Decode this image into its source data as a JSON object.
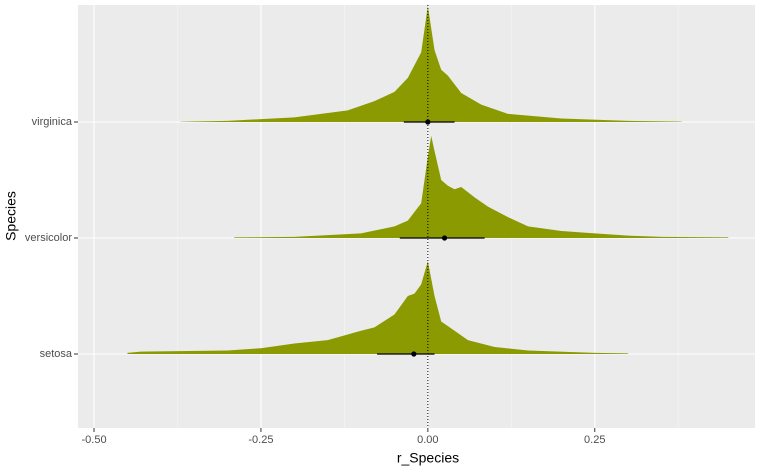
{
  "chart_data": {
    "type": "halfeye",
    "xlabel": "r_Species",
    "ylabel": "Species",
    "categories": [
      "setosa",
      "versicolor",
      "virginica"
    ],
    "color": "#8a9a00",
    "points": [
      -0.021,
      0.025,
      0.0
    ],
    "lower": [
      -0.076,
      -0.042,
      -0.036
    ],
    "upper": [
      0.01,
      0.085,
      0.04
    ],
    "density_x": [
      [
        -0.45,
        -0.43,
        -0.3,
        -0.25,
        -0.2,
        -0.15,
        -0.1,
        -0.08,
        -0.05,
        -0.03,
        -0.02,
        -0.01,
        0.0,
        0.01,
        0.02,
        0.04,
        0.06,
        0.1,
        0.15,
        0.25,
        0.3
      ],
      [
        -0.29,
        -0.2,
        -0.1,
        -0.05,
        -0.03,
        -0.01,
        0.0,
        0.005,
        0.01,
        0.02,
        0.03,
        0.04,
        0.05,
        0.07,
        0.09,
        0.12,
        0.15,
        0.2,
        0.25,
        0.3,
        0.35,
        0.45
      ],
      [
        -0.37,
        -0.3,
        -0.2,
        -0.12,
        -0.08,
        -0.05,
        -0.03,
        -0.01,
        0.0,
        0.01,
        0.02,
        0.03,
        0.05,
        0.08,
        0.12,
        0.2,
        0.3,
        0.38
      ]
    ],
    "density": [
      [
        0.01,
        0.02,
        0.03,
        0.05,
        0.09,
        0.12,
        0.2,
        0.23,
        0.34,
        0.5,
        0.52,
        0.6,
        0.8,
        0.5,
        0.28,
        0.2,
        0.12,
        0.06,
        0.03,
        0.01,
        0.005
      ],
      [
        0.005,
        0.01,
        0.04,
        0.1,
        0.15,
        0.3,
        0.7,
        0.88,
        0.75,
        0.5,
        0.45,
        0.42,
        0.44,
        0.35,
        0.27,
        0.18,
        0.1,
        0.06,
        0.04,
        0.02,
        0.01,
        0.005
      ],
      [
        0.002,
        0.01,
        0.04,
        0.1,
        0.18,
        0.26,
        0.38,
        0.6,
        1.0,
        0.62,
        0.45,
        0.4,
        0.25,
        0.15,
        0.07,
        0.03,
        0.01,
        0.003
      ]
    ],
    "reference_line": 0,
    "xlim": [
      -0.524,
      0.49
    ],
    "xticks": [
      {
        "value": -0.5,
        "label": "-0.50"
      },
      {
        "value": -0.25,
        "label": "-0.25"
      },
      {
        "value": 0,
        "label": "0.00"
      },
      {
        "value": 0.25,
        "label": "0.25"
      }
    ],
    "xminor": [
      -0.375,
      -0.125,
      0.125,
      0.375
    ],
    "grid": true
  }
}
